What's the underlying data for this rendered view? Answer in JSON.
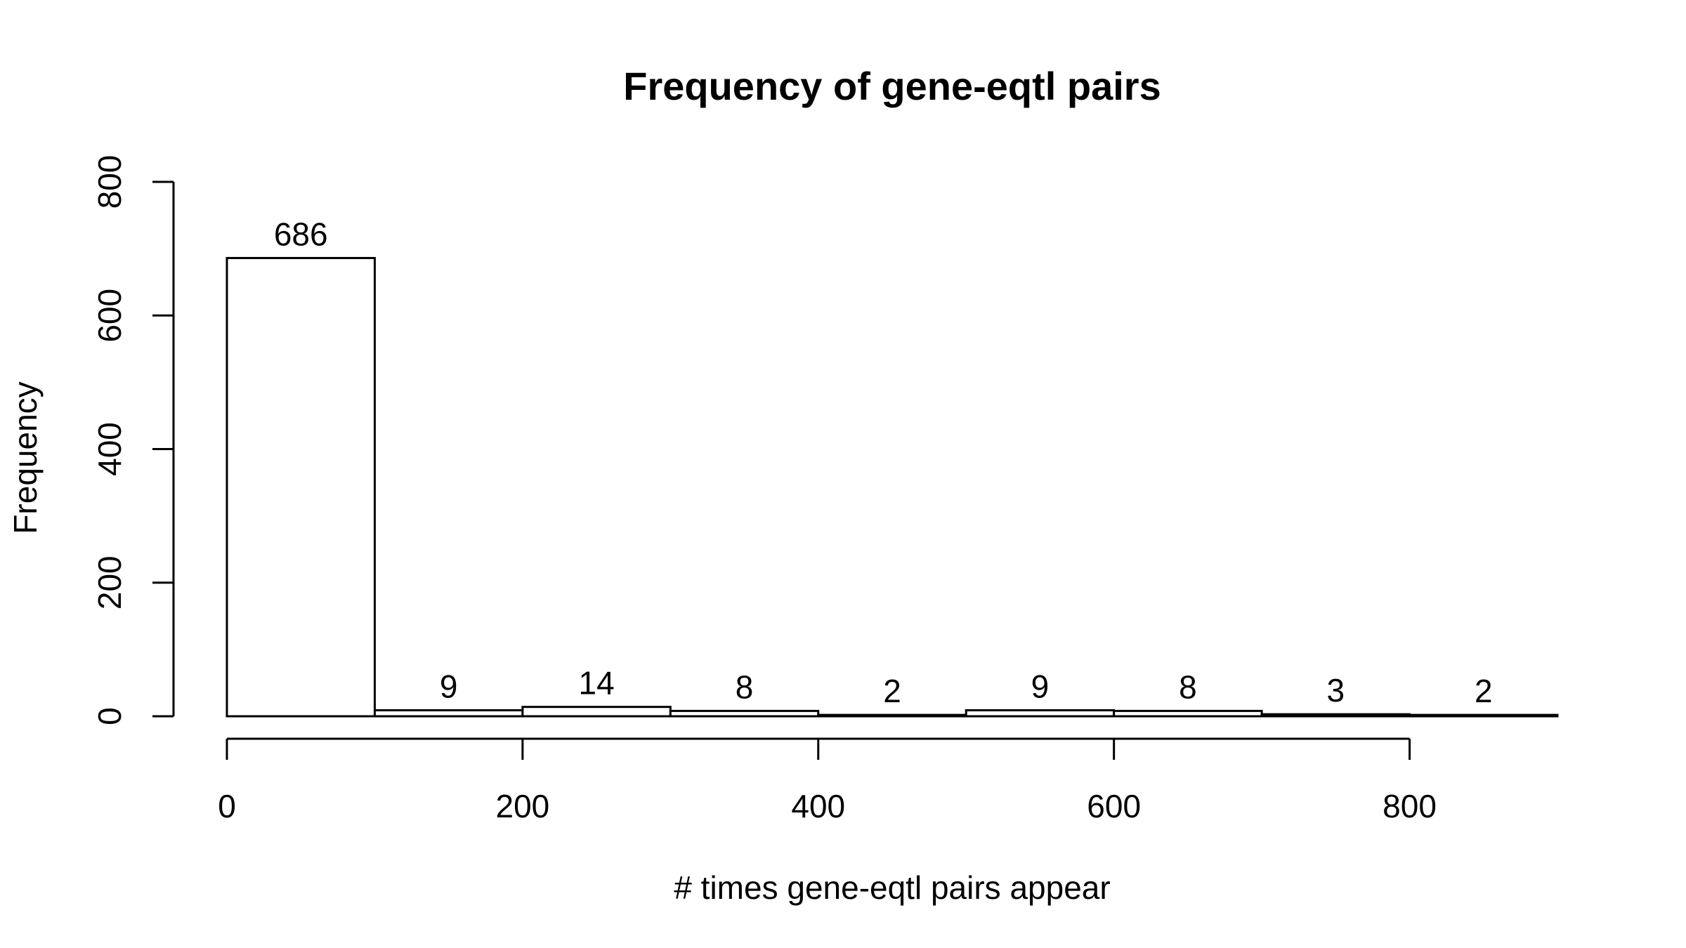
{
  "chart_data": {
    "type": "bar",
    "title": "Frequency of gene-eqtl pairs",
    "xlabel": "# times gene-eqtl pairs appear",
    "ylabel": "Frequency",
    "bins": [
      {
        "from": 0,
        "to": 100,
        "value": 686,
        "label": "686"
      },
      {
        "from": 100,
        "to": 200,
        "value": 9,
        "label": "9"
      },
      {
        "from": 200,
        "to": 300,
        "value": 14,
        "label": "14"
      },
      {
        "from": 300,
        "to": 400,
        "value": 8,
        "label": "8"
      },
      {
        "from": 400,
        "to": 500,
        "value": 2,
        "label": "2"
      },
      {
        "from": 500,
        "to": 600,
        "value": 9,
        "label": "9"
      },
      {
        "from": 600,
        "to": 700,
        "value": 8,
        "label": "8"
      },
      {
        "from": 700,
        "to": 800,
        "value": 3,
        "label": "3"
      },
      {
        "from": 800,
        "to": 900,
        "value": 2,
        "label": "2"
      }
    ],
    "xticks": [
      "0",
      "200",
      "400",
      "600",
      "800"
    ],
    "yticks": [
      "0",
      "200",
      "400",
      "600",
      "800"
    ],
    "xlim": [
      0,
      900
    ],
    "ylim": [
      0,
      800
    ],
    "grid": false,
    "legend": "none"
  }
}
